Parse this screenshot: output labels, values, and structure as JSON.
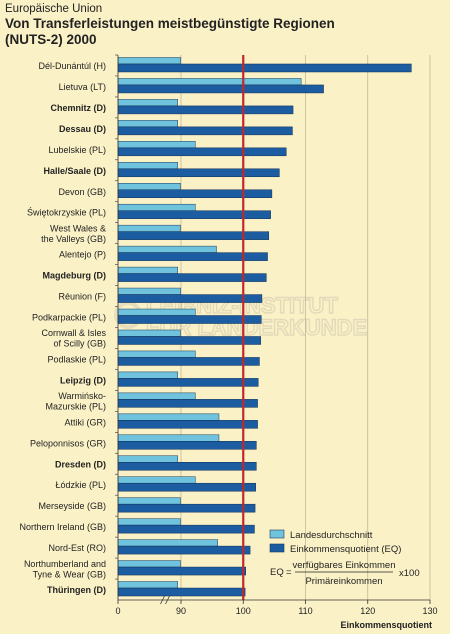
{
  "header": {
    "supertitle": "Europäische Union",
    "title_line1": "Von Transferleistungen meistbegünstigte Regionen",
    "title_line2": "(NUTS-2) 2000"
  },
  "watermark": {
    "line1": "LEIBNIZ-INSTITUT",
    "line2": "FÜR LÄNDERKUNDE"
  },
  "chart_data": {
    "type": "bar",
    "title": "Von Transferleistungen meistbegünstigte Regionen (NUTS-2) 2000",
    "xlabel": "Einkommensquotient",
    "xlim": [
      0,
      130
    ],
    "xticks": [
      0,
      90,
      100,
      110,
      120,
      130
    ],
    "axis_break": "between 0 and 90",
    "reference_line": {
      "value": 100,
      "color": "#c0282d"
    },
    "grid": true,
    "legend_position": "bottom-right",
    "colors": {
      "landesdurchschnitt": "#6fc3dc",
      "einkommensquotient": "#1c5ca0",
      "background": "#fbf1c7"
    },
    "categories": [
      "Dél-Dunántúl (H)",
      "Lietuva (LT)",
      "Chemnitz (D)",
      "Dessau (D)",
      "Lubelskie (PL)",
      "Halle/Saale (D)",
      "Devon (GB)",
      "Świętokrzyskie (PL)",
      "West Wales & the Valleys (GB)",
      "Alentejo (P)",
      "Magdeburg (D)",
      "Réunion (F)",
      "Podkarpackie (PL)",
      "Cornwall & Isles of Scilly (GB)",
      "Podlaskie (PL)",
      "Leipzig (D)",
      "Warmińsko-Mazurskie (PL)",
      "Attiki (GR)",
      "Peloponnisos (GR)",
      "Dresden (D)",
      "Łódzkie (PL)",
      "Merseyside (GB)",
      "Northern Ireland (GB)",
      "Nord-Est (RO)",
      "Northumberland and Tyne & Wear (GB)",
      "Thüringen (D)"
    ],
    "label_lines": [
      [
        "Dél-Dunántúl (H)"
      ],
      [
        "Lietuva (LT)"
      ],
      [
        "Chemnitz (D)"
      ],
      [
        "Dessau (D)"
      ],
      [
        "Lubelskie (PL)"
      ],
      [
        "Halle/Saale (D)"
      ],
      [
        "Devon (GB)"
      ],
      [
        "Świętokrzyskie (PL)"
      ],
      [
        "West Wales &",
        "the Valleys (GB)"
      ],
      [
        "Alentejo (P)"
      ],
      [
        "Magdeburg (D)"
      ],
      [
        "Réunion (F)"
      ],
      [
        "Podkarpackie (PL)"
      ],
      [
        "Cornwall & Isles",
        "of Scilly (GB)"
      ],
      [
        "Podlaskie (PL)"
      ],
      [
        "Leipzig (D)"
      ],
      [
        "Warmińsko-",
        "Mazurskie (PL)"
      ],
      [
        "Attiki (GR)"
      ],
      [
        "Peloponnisos (GR)"
      ],
      [
        "Dresden (D)"
      ],
      [
        "Łódzkie (PL)"
      ],
      [
        "Merseyside (GB)"
      ],
      [
        "Northern Ireland (GB)"
      ],
      [
        "Nord-Est (RO)"
      ],
      [
        "Northumberland and",
        "Tyne & Wear (GB)"
      ],
      [
        "Thüringen (D)"
      ]
    ],
    "bold_labels": [
      false,
      false,
      true,
      true,
      false,
      true,
      false,
      false,
      false,
      false,
      true,
      false,
      false,
      false,
      false,
      true,
      false,
      false,
      false,
      true,
      false,
      false,
      false,
      false,
      false,
      true
    ],
    "series": [
      {
        "name": "Landesdurchschnitt",
        "values": [
          89.5,
          109.3,
          85.3,
          85.3,
          92.3,
          85.3,
          89.2,
          92.3,
          89.2,
          95.7,
          85.3,
          89.4,
          92.3,
          89.2,
          92.3,
          85.3,
          92.3,
          96.1,
          96.1,
          85.3,
          92.3,
          89.2,
          89.2,
          95.9,
          89.2,
          85.3
        ]
      },
      {
        "name": "Einkommensquotient (EQ)",
        "values": [
          127.0,
          112.9,
          108.0,
          107.9,
          106.9,
          105.8,
          104.6,
          104.4,
          104.1,
          103.9,
          103.7,
          103.0,
          102.9,
          102.8,
          102.6,
          102.4,
          102.3,
          102.3,
          102.1,
          102.1,
          102.0,
          101.9,
          101.8,
          101.1,
          100.4,
          100.3
        ]
      }
    ],
    "formula": {
      "lhs": "EQ",
      "eq_sign": "=",
      "numerator": "verfügbares Einkommen",
      "denominator": "Primäreinkommen",
      "multiplier": "x100"
    }
  }
}
